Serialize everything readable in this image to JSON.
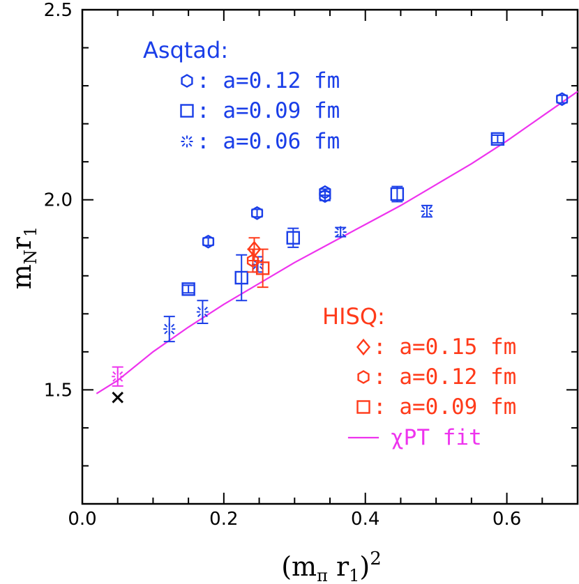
{
  "chart_data": {
    "type": "scatter",
    "title": "",
    "xlabel": "(mπ r1)^2",
    "ylabel": "mN r1",
    "xlim": [
      0,
      0.7
    ],
    "ylim": [
      1.2,
      2.5
    ],
    "x_ticks": [
      "0.0",
      "0.2",
      "0.4",
      "0.6"
    ],
    "y_ticks": [
      "1.5",
      "2.0",
      "2.5"
    ],
    "legend_groups": [
      {
        "title": "Asqtad:",
        "color": "#1a3ee8",
        "entries": [
          {
            "marker": "hexagon",
            "text": ": a=0.12 fm"
          },
          {
            "marker": "square",
            "text": ": a=0.09 fm"
          },
          {
            "marker": "burst",
            "text": ": a=0.06 fm"
          }
        ]
      },
      {
        "title": "HISQ:",
        "color": "#ff3a1a",
        "entries": [
          {
            "marker": "diamond",
            "text": ": a=0.15 fm"
          },
          {
            "marker": "hexagon",
            "text": ": a=0.12 fm"
          },
          {
            "marker": "square",
            "text": ": a=0.09 fm"
          },
          {
            "marker": "line",
            "text": "χPT fit",
            "color": "#ee33ee"
          }
        ]
      }
    ],
    "series": [
      {
        "group": "Asqtad",
        "label": "a=0.12 fm",
        "marker": "hexagon",
        "color": "#1a3ee8",
        "points": [
          [
            0.178,
            1.89,
            0.01
          ],
          [
            0.247,
            1.965,
            0.01
          ],
          [
            0.343,
            2.01,
            0.012
          ],
          [
            0.343,
            2.02,
            0.008
          ],
          [
            0.678,
            2.265,
            0.01
          ]
        ]
      },
      {
        "group": "Asqtad",
        "label": "a=0.09 fm",
        "marker": "square",
        "color": "#1a3ee8",
        "points": [
          [
            0.15,
            1.765,
            0.01
          ],
          [
            0.225,
            1.795,
            0.06
          ],
          [
            0.298,
            1.9,
            0.025
          ],
          [
            0.445,
            2.015,
            0.02
          ],
          [
            0.587,
            2.16,
            0.01
          ]
        ]
      },
      {
        "group": "Asqtad",
        "label": "a=0.06 fm",
        "marker": "burst",
        "color": "#1a3ee8",
        "points": [
          [
            0.123,
            1.66,
            0.033
          ],
          [
            0.17,
            1.705,
            0.03
          ],
          [
            0.248,
            1.83,
            0.02
          ],
          [
            0.365,
            1.915,
            0.012
          ],
          [
            0.487,
            1.97,
            0.015
          ]
        ]
      },
      {
        "group": "HISQ",
        "label": "a=0.15 fm",
        "marker": "diamond",
        "color": "#ff3a1a",
        "points": [
          [
            0.243,
            1.87,
            0.03
          ]
        ]
      },
      {
        "group": "HISQ",
        "label": "a=0.12 fm",
        "marker": "hexagon",
        "color": "#ff3a1a",
        "points": [
          [
            0.241,
            1.84,
            0.03
          ]
        ]
      },
      {
        "group": "HISQ",
        "label": "a=0.09 fm",
        "marker": "square",
        "color": "#ff3a1a",
        "points": [
          [
            0.255,
            1.82,
            0.05
          ]
        ]
      },
      {
        "group": "extra",
        "label": "",
        "marker": "burst",
        "color": "#ee33ee",
        "points": [
          [
            0.05,
            1.535,
            0.025
          ]
        ]
      },
      {
        "group": "extra",
        "label": "",
        "marker": "x",
        "color": "#000000",
        "points": [
          [
            0.05,
            1.48,
            0
          ]
        ]
      }
    ],
    "fit_line": {
      "label": "χPT fit",
      "color": "#ee33ee",
      "x": [
        0.02,
        0.05,
        0.1,
        0.15,
        0.2,
        0.25,
        0.3,
        0.35,
        0.4,
        0.45,
        0.5,
        0.55,
        0.6,
        0.65,
        0.7
      ],
      "y": [
        1.49,
        1.525,
        1.6,
        1.665,
        1.725,
        1.78,
        1.835,
        1.885,
        1.935,
        1.985,
        2.04,
        2.095,
        2.155,
        2.22,
        2.285
      ]
    }
  }
}
